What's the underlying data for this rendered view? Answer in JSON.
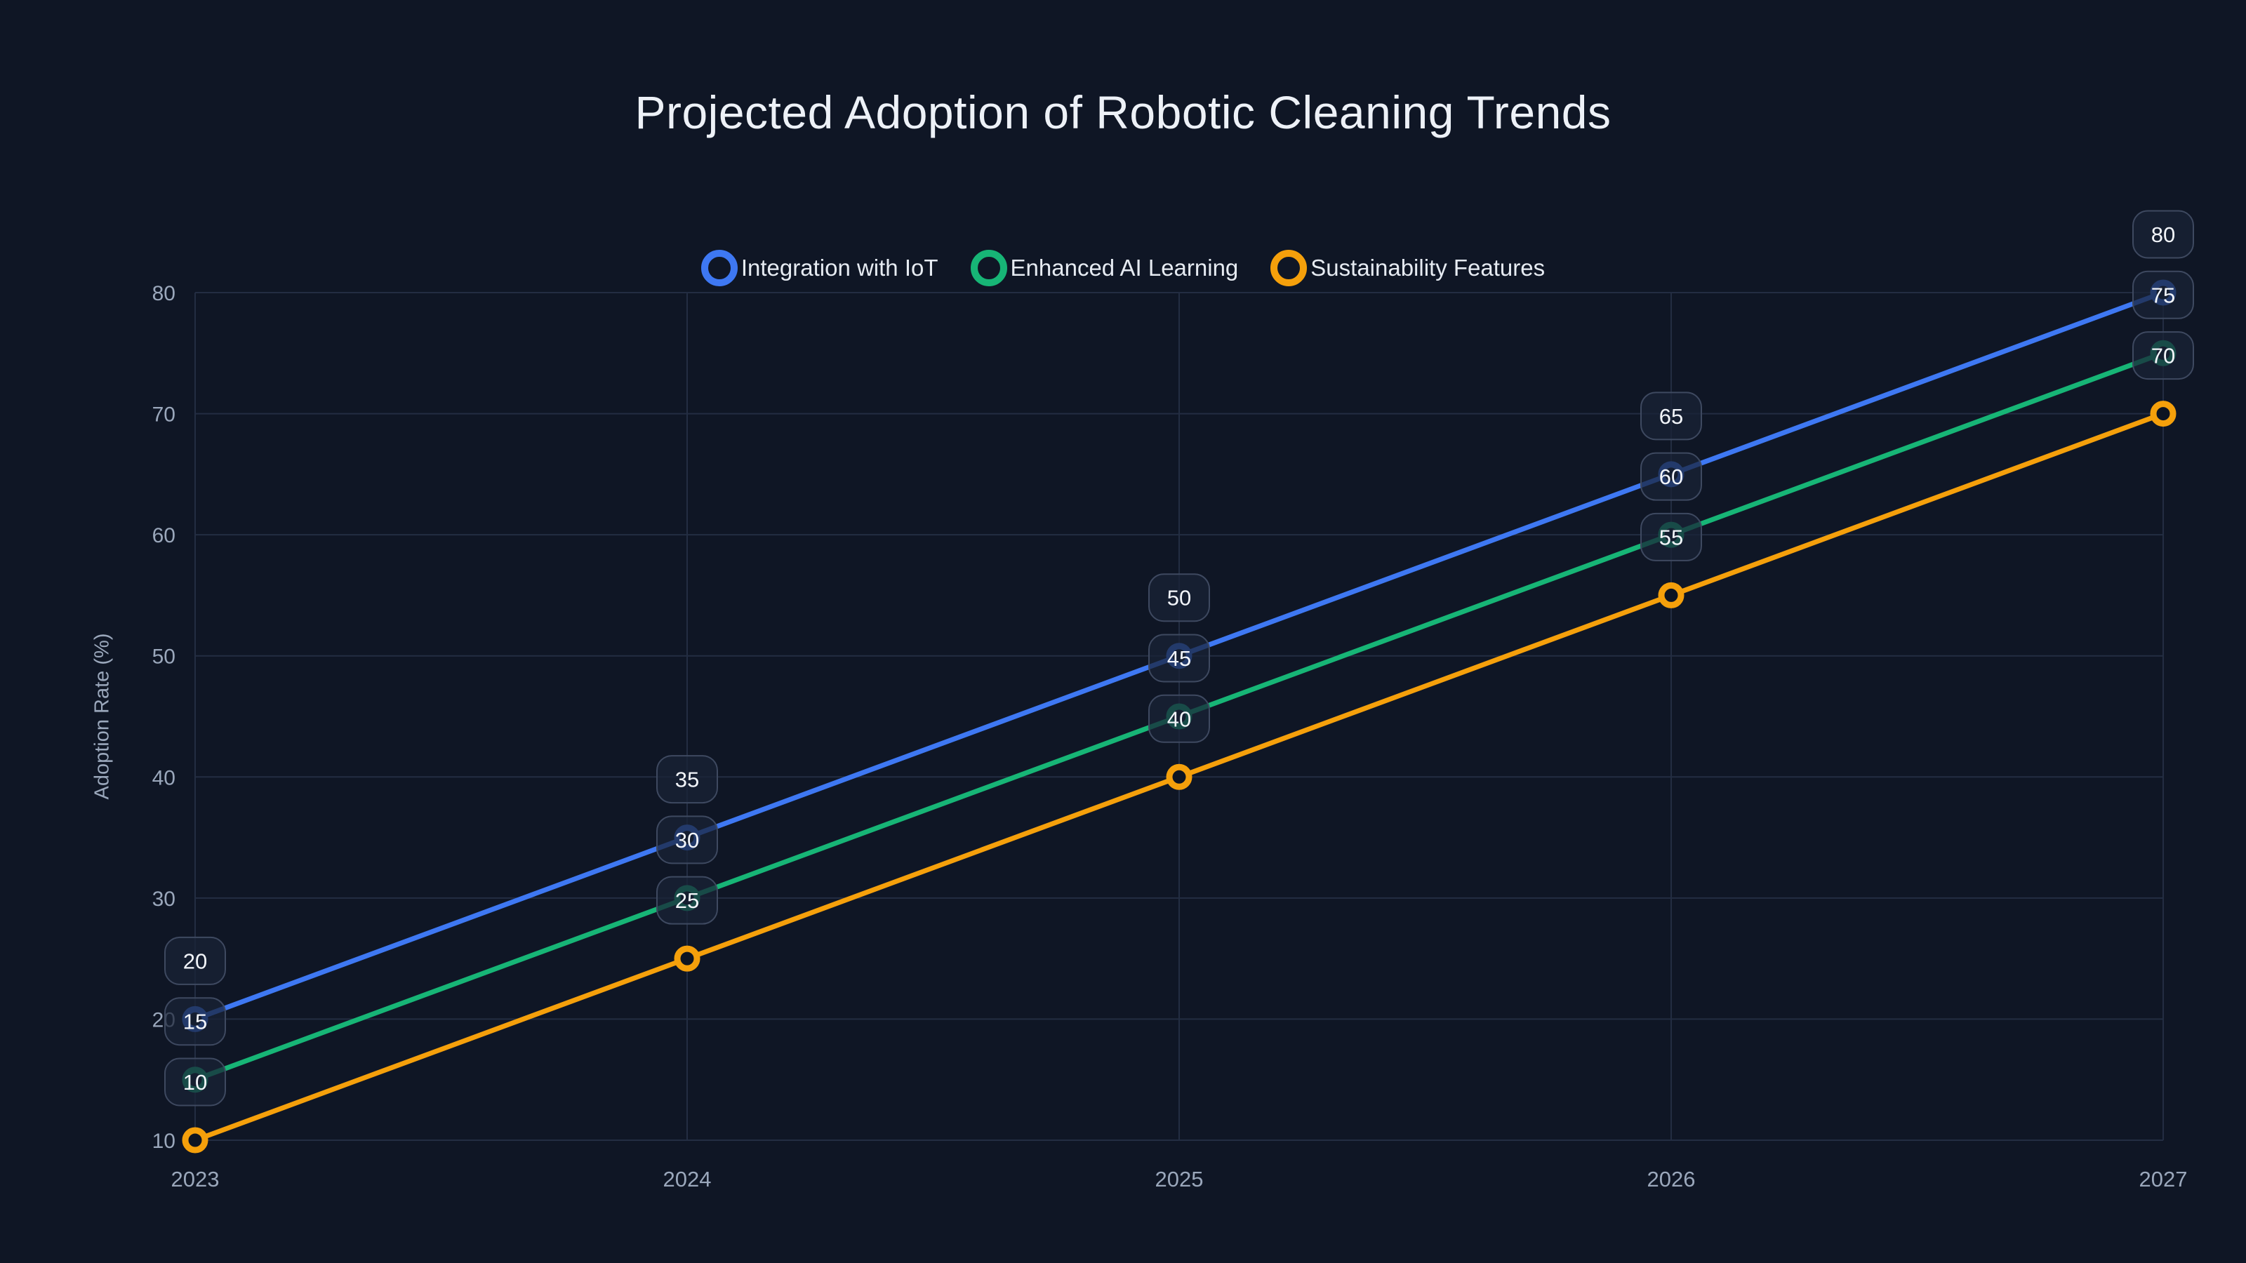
{
  "chart_data": {
    "type": "line",
    "title": "Projected Adoption of Robotic Cleaning Trends",
    "ylabel": "Adoption Rate (%)",
    "xlabel": "",
    "categories": [
      "2023",
      "2024",
      "2025",
      "2026",
      "2027"
    ],
    "yticks": [
      "10",
      "20",
      "30",
      "40",
      "50",
      "60",
      "70",
      "80"
    ],
    "ylim": [
      10,
      80
    ],
    "grid": true,
    "legend_position": "top-center",
    "point_labels_visible": true,
    "marker_style": "open-ring",
    "series": [
      {
        "name": "Integration with IoT",
        "color": "#3e78f3",
        "values": [
          20,
          35,
          50,
          65,
          80
        ]
      },
      {
        "name": "Enhanced AI Learning",
        "color": "#17b576",
        "values": [
          15,
          30,
          45,
          60,
          75
        ]
      },
      {
        "name": "Sustainability Features",
        "color": "#f5a00b",
        "values": [
          10,
          25,
          40,
          55,
          70
        ]
      }
    ]
  },
  "colors": {
    "background": "#0f1625",
    "grid": "#232d42",
    "axis_text": "#9aa7bb",
    "title_text": "#edf1f7",
    "legend_text": "#e6ebf2",
    "badge_fill": "rgba(25,34,54,0.72)",
    "badge_border": "#3e4960",
    "badge_text": "#f2f5fa",
    "marker_fill": "#0d1422"
  }
}
